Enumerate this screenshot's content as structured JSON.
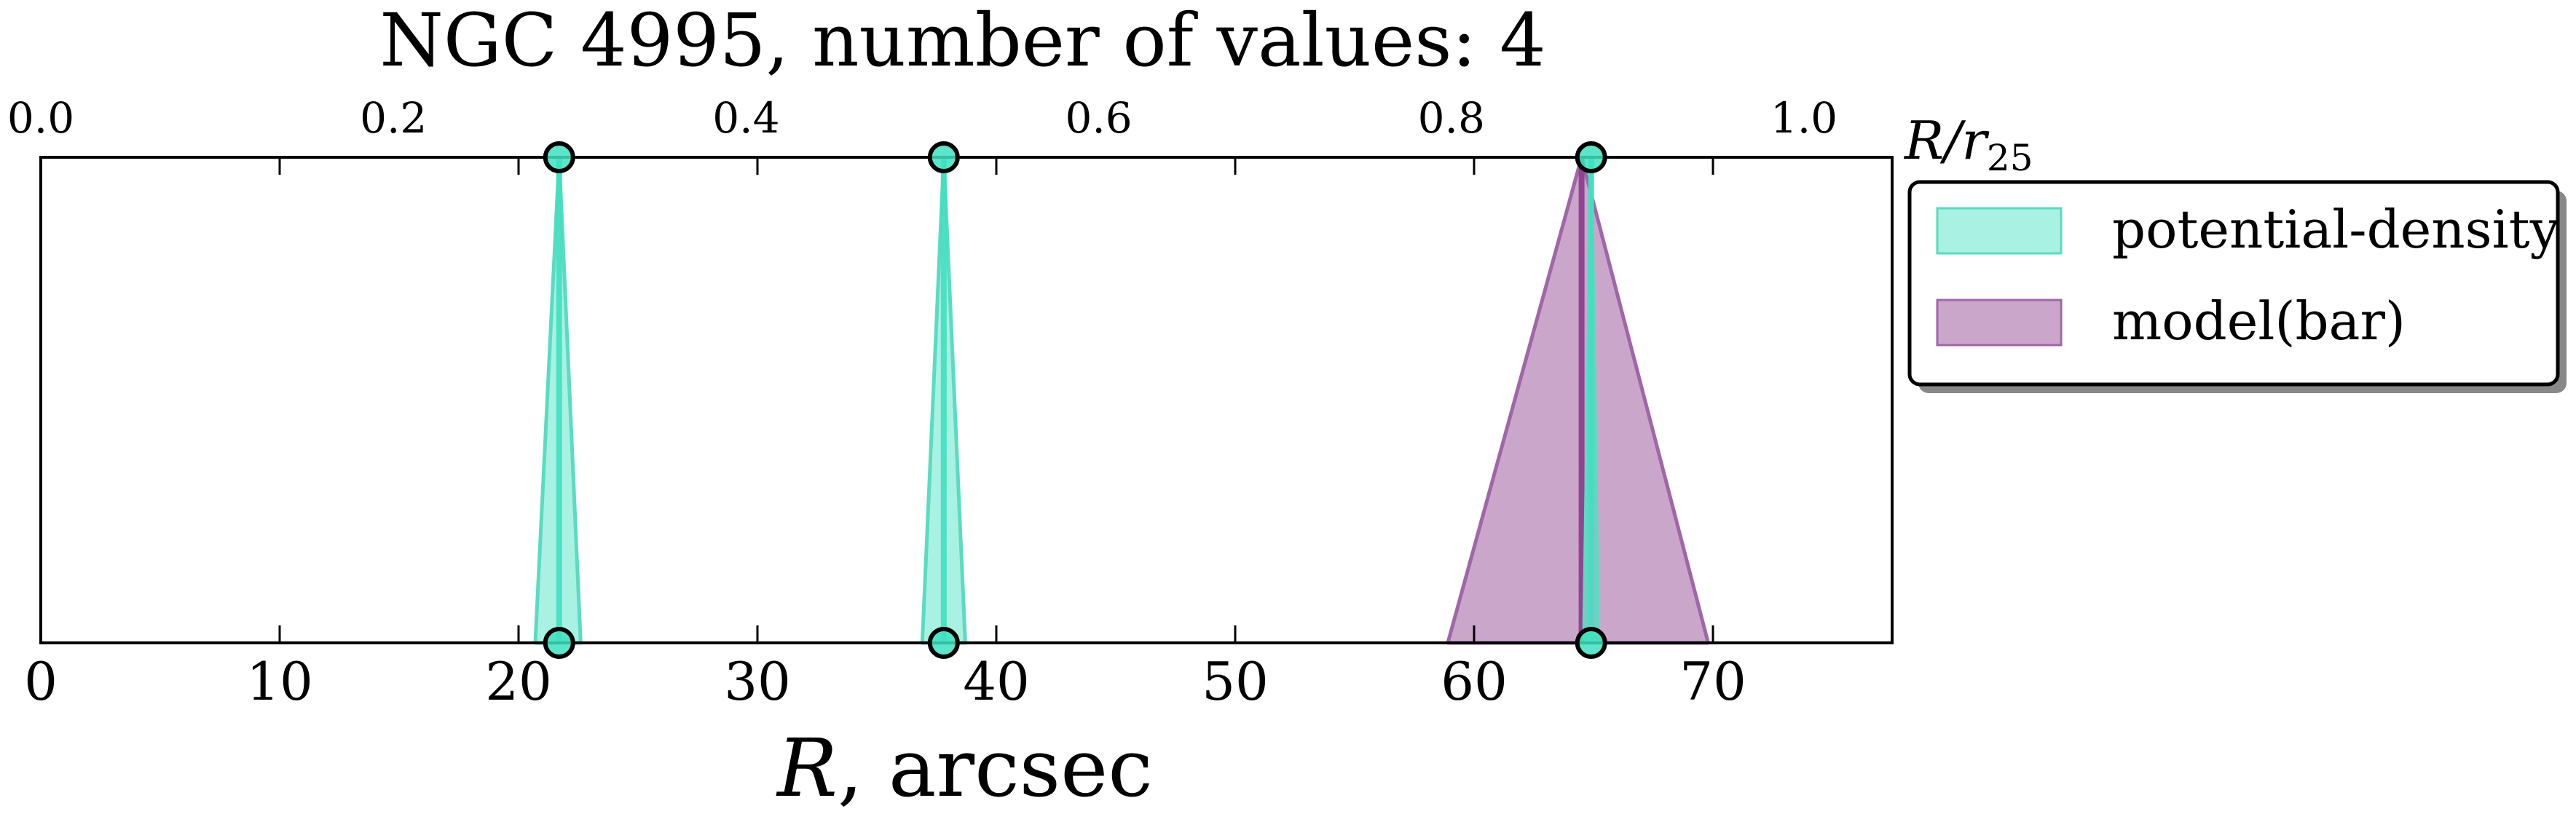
{
  "chart_data": {
    "type": "area",
    "title": "NGC 4995, number of values: 4",
    "xlabel": "R, arcsec",
    "xlabel_parts": {
      "var": "R",
      "rest": ", arcsec"
    },
    "x2label": "R/r25",
    "x2label_parts": {
      "var": "R/r",
      "sub": "25"
    },
    "xlim": [
      0,
      77.5
    ],
    "xticks": [
      0,
      10,
      20,
      30,
      40,
      50,
      60,
      70
    ],
    "xtick_labels": [
      "0",
      "10",
      "20",
      "30",
      "40",
      "50",
      "60",
      "70"
    ],
    "x2lim": [
      0,
      1.05
    ],
    "x2ticks": [
      0.0,
      0.2,
      0.4,
      0.6,
      0.8,
      1.0
    ],
    "x2tick_labels": [
      "0.0",
      "0.2",
      "0.4",
      "0.6",
      "0.8",
      "1.0"
    ],
    "y_axis_visible": false,
    "grid": false,
    "legend_position": "outside-right",
    "series": [
      {
        "name": "potential-density",
        "color": "#40e0c0",
        "edge_color": "#59dcc1",
        "values": [
          {
            "r": 21.7,
            "r_min": 20.7,
            "r_max": 22.6
          },
          {
            "r": 37.8,
            "r_min": 36.9,
            "r_max": 38.7
          },
          {
            "r": 64.9,
            "r_min": 64.6,
            "r_max": 65.2
          }
        ]
      },
      {
        "name": "model(bar)",
        "color": "#8b3a8b",
        "edge_color": "#a066a8",
        "values": [
          {
            "r": 64.5,
            "r_min": 58.9,
            "r_max": 69.8
          }
        ]
      }
    ]
  }
}
